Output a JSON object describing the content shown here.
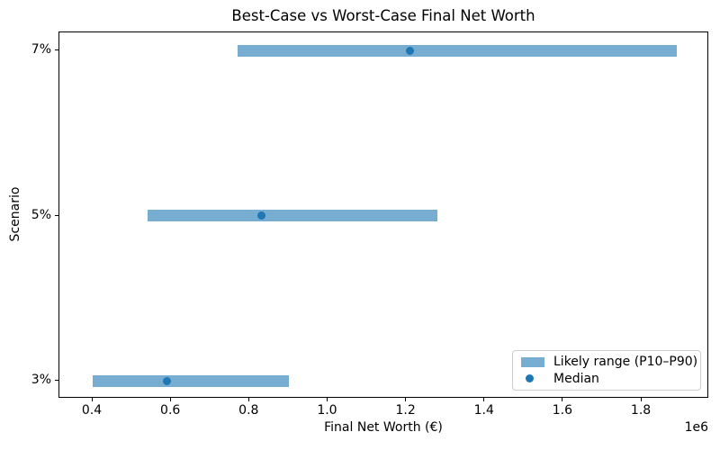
{
  "chart_data": {
    "type": "bar",
    "subtype": "horizontal-range-bars-with-median-points",
    "title": "Best-Case vs Worst-Case Final Net Worth",
    "xlabel": "Final Net Worth (€)",
    "ylabel": "Scenario",
    "x_offset_label": "1e6",
    "categories": [
      "7%",
      "5%",
      "3%"
    ],
    "series": [
      {
        "name": "Likely range (P10–P90)",
        "style": "bar",
        "p10": [
          770000,
          540000,
          400000
        ],
        "p90": [
          1890000,
          1280000,
          900000
        ]
      },
      {
        "name": "Median",
        "style": "point",
        "values": [
          1210000,
          830000,
          590000
        ]
      }
    ],
    "xlim": [
      315000,
      1972000
    ],
    "xticks": [
      400000,
      600000,
      800000,
      1000000,
      1200000,
      1400000,
      1600000,
      1800000
    ],
    "xtick_labels": [
      "0.4",
      "0.6",
      "0.8",
      "1.0",
      "1.2",
      "1.4",
      "1.6",
      "1.8"
    ],
    "grid": false,
    "legend": {
      "position": "lower right",
      "entries": [
        "Likely range (P10–P90)",
        "Median"
      ]
    },
    "colors": {
      "bar": "#78add2",
      "median": "#1f77b4",
      "spine": "#000000",
      "legend_border": "#cccccc"
    }
  }
}
